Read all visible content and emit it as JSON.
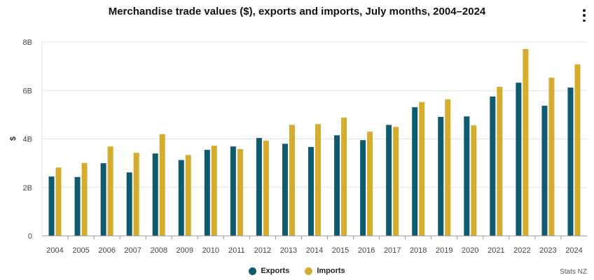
{
  "title": "Merchandise trade values ($), exports and imports, July months, 2004–2024",
  "menu_icon": "kebab-menu-icon",
  "credit": "Stats NZ",
  "chart_data": {
    "type": "bar",
    "title": "Merchandise trade values ($), exports and imports, July months, 2004–2024",
    "xlabel": "",
    "ylabel": "$",
    "ylim": [
      0,
      8000000000
    ],
    "y_ticks": [
      0,
      2000000000,
      4000000000,
      6000000000,
      8000000000
    ],
    "y_tick_labels": [
      "0",
      "2B",
      "4B",
      "6B",
      "8B"
    ],
    "grid": "horizontal",
    "legend_position": "bottom",
    "categories": [
      "2004",
      "2005",
      "2006",
      "2007",
      "2008",
      "2009",
      "2010",
      "2011",
      "2012",
      "2013",
      "2014",
      "2015",
      "2016",
      "2017",
      "2018",
      "2019",
      "2020",
      "2021",
      "2022",
      "2023",
      "2024"
    ],
    "series": [
      {
        "name": "Exports",
        "color": "#0e5a6e",
        "values": [
          2450000000,
          2430000000,
          3000000000,
          2620000000,
          3400000000,
          3130000000,
          3550000000,
          3690000000,
          4040000000,
          3800000000,
          3670000000,
          4150000000,
          3950000000,
          4580000000,
          5310000000,
          4910000000,
          4930000000,
          5750000000,
          6320000000,
          5370000000,
          6120000000
        ]
      },
      {
        "name": "Imports",
        "color": "#d4ac2e",
        "values": [
          2820000000,
          3010000000,
          3690000000,
          3430000000,
          4200000000,
          3340000000,
          3720000000,
          3580000000,
          3930000000,
          4580000000,
          4610000000,
          4880000000,
          4300000000,
          4500000000,
          5520000000,
          5630000000,
          4560000000,
          6150000000,
          7710000000,
          6530000000,
          7080000000
        ]
      }
    ]
  }
}
